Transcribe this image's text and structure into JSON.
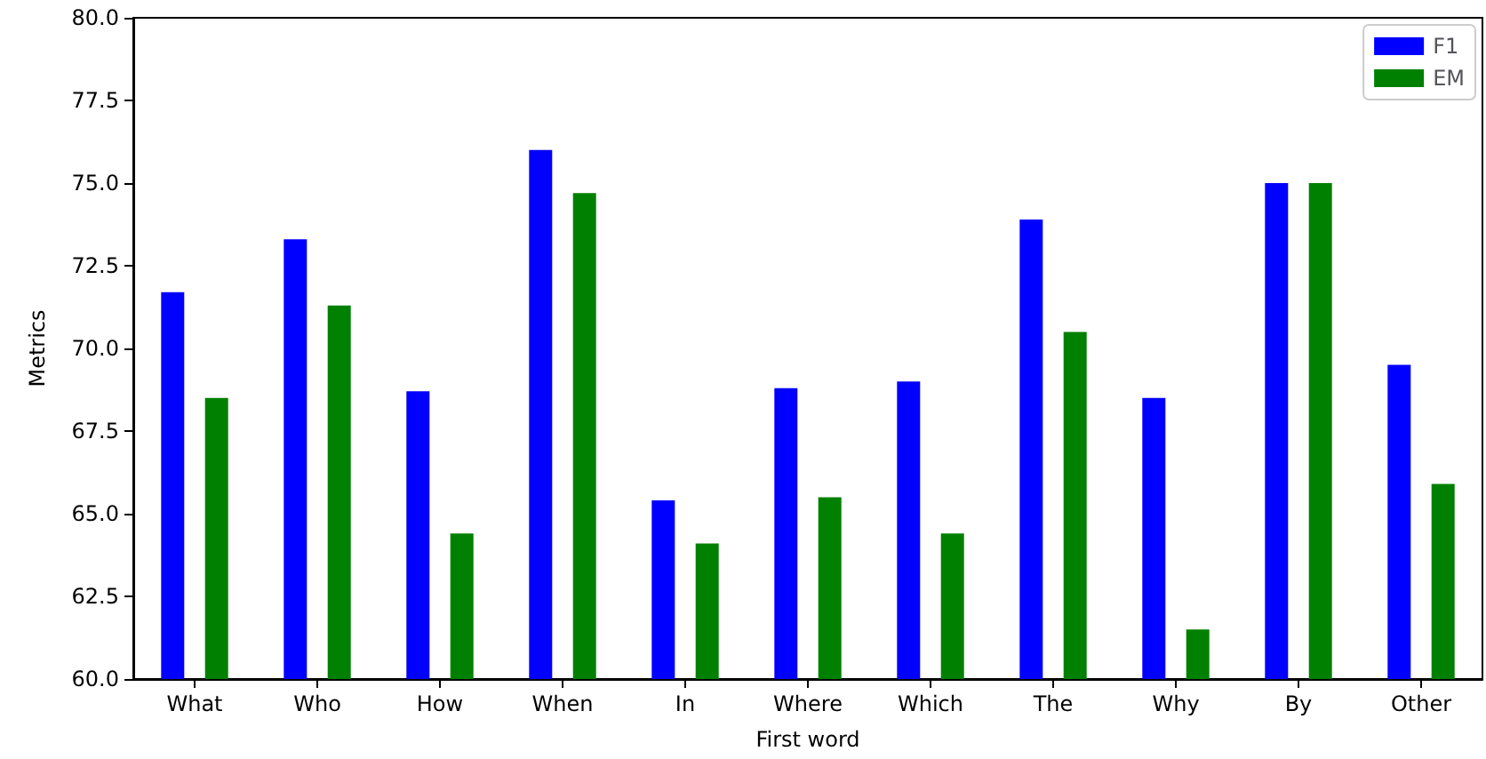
{
  "chart_data": {
    "type": "bar",
    "xlabel": "First word",
    "ylabel": "Metrics",
    "categories": [
      "What",
      "Who",
      "How",
      "When",
      "In",
      "Where",
      "Which",
      "The",
      "Why",
      "By",
      "Other"
    ],
    "series": [
      {
        "name": "F1",
        "color": "#0000ff",
        "values": [
          71.7,
          73.3,
          68.7,
          76.0,
          65.4,
          68.8,
          69.0,
          73.9,
          68.5,
          75.0,
          69.5
        ]
      },
      {
        "name": "EM",
        "color": "#008000",
        "values": [
          68.5,
          71.3,
          64.4,
          74.7,
          64.1,
          65.5,
          64.4,
          70.5,
          61.5,
          75.0,
          65.9
        ]
      }
    ],
    "ylim": [
      60,
      80
    ],
    "yticks": [
      {
        "value": 60,
        "label": "60.0"
      },
      {
        "value": 62.5,
        "label": "62.5"
      },
      {
        "value": 65,
        "label": "65.0"
      },
      {
        "value": 67.5,
        "label": "67.5"
      },
      {
        "value": 70,
        "label": "70.0"
      },
      {
        "value": 72.5,
        "label": "72.5"
      },
      {
        "value": 75,
        "label": "75.0"
      },
      {
        "value": 77.5,
        "label": "77.5"
      },
      {
        "value": 80,
        "label": "80.0"
      }
    ],
    "grid": false,
    "legend": "top right"
  }
}
